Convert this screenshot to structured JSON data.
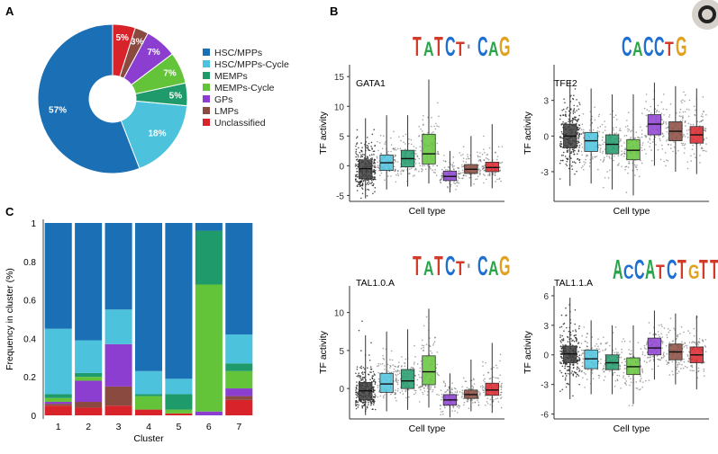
{
  "panels": {
    "a": "A",
    "b": "B",
    "c": "C"
  },
  "palette": [
    "#1a6fb5",
    "#4cc2dc",
    "#1f9a6a",
    "#63c43a",
    "#8c3ed1",
    "#8b4a40",
    "#d9232b"
  ],
  "chart_data": [
    {
      "type": "pie",
      "categories": [
        "HSC/MPPs",
        "HSC/MPPs-Cycle",
        "MEMPs",
        "MEMPs-Cycle",
        "GPs",
        "LMPs",
        "Unclassified"
      ],
      "values": [
        57,
        18,
        5,
        7,
        7,
        3,
        5
      ],
      "slice_labels": [
        "57%",
        "18%",
        "5%",
        "7%",
        "7%",
        "3%",
        "5%"
      ],
      "legend": "right"
    },
    {
      "type": "box",
      "title": "GATA1",
      "xlabel": "Cell type",
      "ylabel": "TF activity",
      "yticks": [
        -5,
        0,
        5,
        10,
        15
      ],
      "ylim": [
        -6,
        17
      ],
      "medians": [
        -0.5,
        0.5,
        1.2,
        2.0,
        -1.8,
        -0.6,
        -0.3
      ],
      "q1": [
        -2.2,
        -0.8,
        -0.2,
        0.3,
        -2.5,
        -1.3,
        -1.0
      ],
      "q3": [
        1.0,
        1.8,
        2.6,
        5.3,
        -0.9,
        0.2,
        0.6
      ],
      "whisker_low": [
        -5.5,
        -4.0,
        -3.5,
        -3.0,
        -4.5,
        -3.5,
        -3.8
      ],
      "whisker_high": [
        8.0,
        8.5,
        8.5,
        14.5,
        2.5,
        5.0,
        7.0
      ],
      "motif": [
        "T",
        "A",
        "T",
        "C",
        "T",
        "·",
        "C",
        "A",
        "G"
      ]
    },
    {
      "type": "box",
      "title": "TFE2",
      "xlabel": "Cell type",
      "ylabel": "TF activity",
      "yticks": [
        -3,
        0,
        3
      ],
      "ylim": [
        -5.5,
        6
      ],
      "medians": [
        0.0,
        -0.4,
        -0.7,
        -1.2,
        1.0,
        0.4,
        0.1
      ],
      "q1": [
        -1.0,
        -1.3,
        -1.5,
        -2.0,
        0.1,
        -0.4,
        -0.6
      ],
      "q3": [
        1.0,
        0.3,
        0.1,
        -0.3,
        1.8,
        1.2,
        0.8
      ],
      "whisker_low": [
        -4.2,
        -4.0,
        -4.5,
        -5.0,
        -2.5,
        -3.0,
        -3.2
      ],
      "whisker_high": [
        4.7,
        4.0,
        3.5,
        3.5,
        4.5,
        4.2,
        4.0
      ],
      "motif": [
        "C",
        "A",
        "C",
        "C",
        "T",
        "G"
      ]
    },
    {
      "type": "box",
      "title": "TAL1.0.A",
      "xlabel": "Cell type",
      "ylabel": "TF activity",
      "yticks": [
        0,
        5,
        10
      ],
      "ylim": [
        -4,
        13.5
      ],
      "medians": [
        -0.3,
        0.6,
        1.0,
        2.2,
        -1.5,
        -0.8,
        -0.2
      ],
      "q1": [
        -1.5,
        -0.5,
        0.0,
        0.5,
        -2.2,
        -1.3,
        -0.9
      ],
      "q3": [
        0.8,
        2.0,
        2.5,
        4.3,
        -0.8,
        -0.2,
        0.7
      ],
      "whisker_low": [
        -3.5,
        -3.0,
        -2.8,
        -2.5,
        -3.8,
        -3.0,
        -3.2
      ],
      "whisker_high": [
        7.0,
        7.5,
        7.8,
        10.5,
        2.0,
        3.8,
        6.0
      ],
      "motif": [
        "T",
        "A",
        "T",
        "C",
        "T",
        "·",
        "C",
        "A",
        "G"
      ]
    },
    {
      "type": "box",
      "title": "TAL1.1.A",
      "xlabel": "Cell type",
      "ylabel": "TF activity",
      "yticks": [
        -6,
        -3,
        0,
        3,
        6
      ],
      "ylim": [
        -6.5,
        7
      ],
      "medians": [
        0.1,
        -0.4,
        -0.8,
        -1.2,
        0.7,
        0.3,
        0.0
      ],
      "q1": [
        -0.8,
        -1.4,
        -1.5,
        -2.0,
        0.0,
        -0.5,
        -0.8
      ],
      "q3": [
        0.9,
        0.5,
        0.0,
        -0.3,
        1.7,
        1.1,
        0.8
      ],
      "whisker_low": [
        -4.5,
        -4.0,
        -4.0,
        -5.0,
        -2.5,
        -3.0,
        -3.5
      ],
      "whisker_high": [
        5.8,
        3.5,
        3.0,
        3.0,
        4.5,
        4.2,
        4.0
      ],
      "motif": [
        "A",
        "C",
        "C",
        "A",
        "T",
        "C",
        "T",
        "G",
        "T",
        "T"
      ]
    },
    {
      "type": "bar",
      "stacked": true,
      "categories": [
        "1",
        "2",
        "3",
        "4",
        "5",
        "6",
        "7"
      ],
      "xlabel": "Cluster",
      "ylabel": "Frequency in cluster (%)",
      "ylim": [
        0,
        1
      ],
      "yticks": [
        "0",
        "0.2",
        "0.4",
        "0.6",
        "0.8",
        "1"
      ],
      "series": [
        {
          "name": "Unclassified",
          "values": [
            0.05,
            0.04,
            0.05,
            0.03,
            0.01,
            0.0,
            0.08
          ]
        },
        {
          "name": "LMPs",
          "values": [
            0.01,
            0.03,
            0.1,
            0.0,
            0.0,
            0.0,
            0.02
          ]
        },
        {
          "name": "GPs",
          "values": [
            0.01,
            0.11,
            0.22,
            0.0,
            0.0,
            0.02,
            0.04
          ]
        },
        {
          "name": "MEMPs-Cycle",
          "values": [
            0.02,
            0.02,
            0.0,
            0.07,
            0.02,
            0.66,
            0.09
          ]
        },
        {
          "name": "MEMPs",
          "values": [
            0.02,
            0.02,
            0.0,
            0.01,
            0.08,
            0.28,
            0.04
          ]
        },
        {
          "name": "HSC/MPPs-Cycle",
          "values": [
            0.34,
            0.17,
            0.18,
            0.12,
            0.08,
            0.0,
            0.15
          ]
        },
        {
          "name": "HSC/MPPs",
          "values": [
            0.55,
            0.61,
            0.45,
            0.77,
            0.81,
            0.04,
            0.58
          ]
        }
      ]
    }
  ]
}
